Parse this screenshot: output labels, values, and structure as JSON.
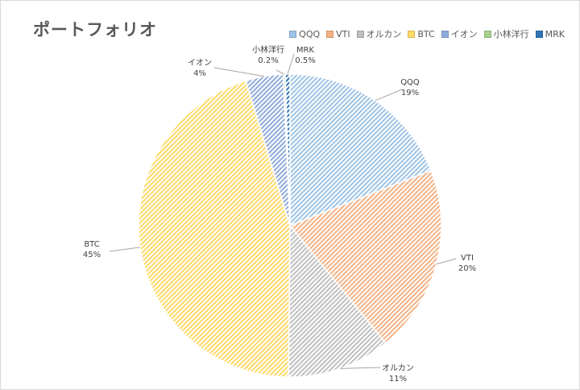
{
  "chart_data": {
    "type": "pie",
    "title": "ポートフォリオ",
    "legend_position": "top-right",
    "categories": [
      "QQQ",
      "VTI",
      "オルカン",
      "BTC",
      "イオン",
      "小林洋行",
      "MRK"
    ],
    "values": [
      19,
      20,
      11,
      45,
      4,
      0.2,
      0.5
    ],
    "value_labels": [
      "19%",
      "20%",
      "11%",
      "45%",
      "4%",
      "0.2%",
      "0.5%"
    ],
    "colors": [
      "#9dc3e6",
      "#f4b183",
      "#bfbfbf",
      "#ffd966",
      "#8faadc",
      "#a9d18e",
      "#2e75b6"
    ],
    "pattern": "diagonal-hatch"
  }
}
